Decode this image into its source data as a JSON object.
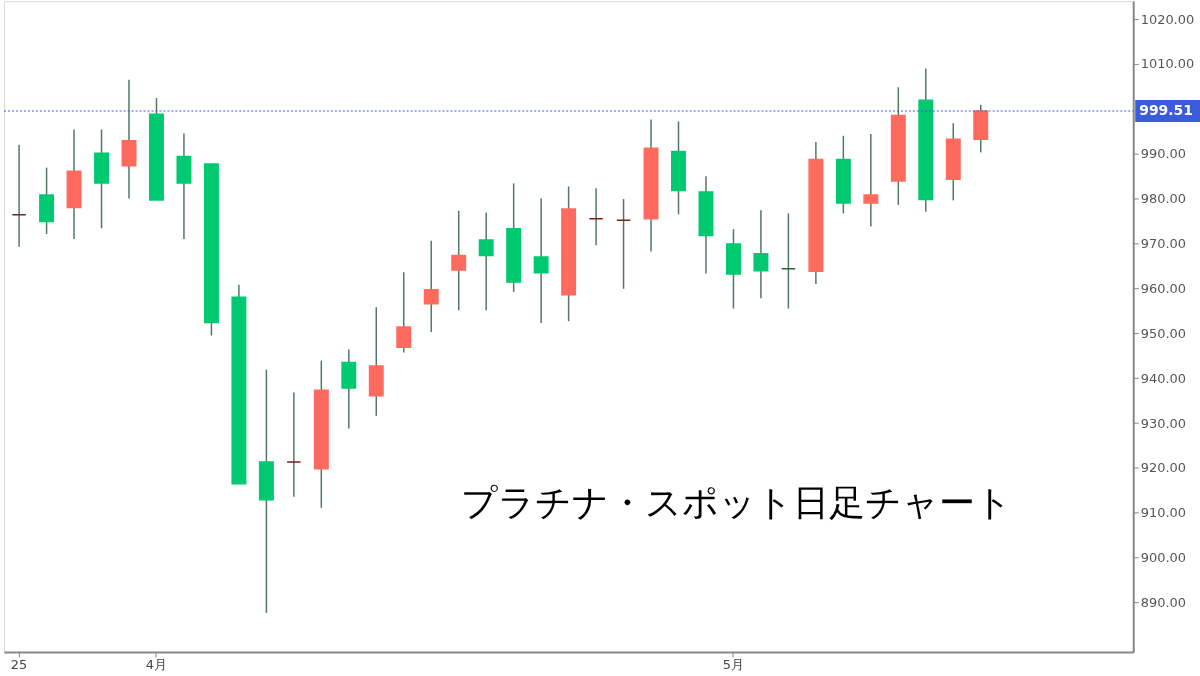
{
  "chart_data": {
    "type": "candlestick",
    "categories": [
      "25",
      null,
      null,
      null,
      null,
      "4月",
      null,
      null,
      null,
      null,
      null,
      null,
      null,
      null,
      null,
      null,
      null,
      null,
      null,
      null,
      null,
      null,
      null,
      null,
      null,
      null,
      "5月",
      null,
      null,
      null,
      null,
      null,
      null,
      null,
      null,
      null,
      null,
      null,
      null,
      null,
      null
    ],
    "ohlc": [
      [
        976.4,
        992.0,
        969.3,
        976.4
      ],
      [
        980.8,
        986.9,
        972.1,
        974.9
      ],
      [
        978.0,
        995.4,
        971.0,
        986.1
      ],
      [
        990.1,
        995.4,
        973.4,
        983.5
      ],
      [
        987.3,
        1006.5,
        980.0,
        992.9
      ],
      [
        998.8,
        1002.4,
        979.7,
        979.7
      ],
      [
        989.4,
        994.5,
        971.0,
        983.5
      ],
      [
        987.7,
        987.7,
        949.5,
        952.4
      ],
      [
        958.0,
        960.8,
        916.5,
        916.5
      ],
      [
        921.3,
        941.9,
        887.7,
        912.9
      ],
      [
        921.3,
        936.8,
        913.6,
        921.3
      ],
      [
        919.8,
        943.9,
        911.1,
        937.3
      ],
      [
        943.5,
        946.4,
        928.8,
        937.8
      ],
      [
        936.1,
        955.8,
        931.6,
        942.7
      ],
      [
        946.9,
        963.6,
        945.7,
        951.4
      ],
      [
        956.6,
        970.6,
        950.3,
        959.7
      ],
      [
        964.1,
        977.3,
        955.1,
        967.3
      ],
      [
        970.8,
        976.9,
        955.1,
        967.3
      ],
      [
        973.3,
        983.4,
        959.2,
        961.4
      ],
      [
        967.0,
        980.0,
        952.3,
        963.5
      ],
      [
        958.6,
        982.7,
        952.7,
        977.7
      ],
      [
        975.5,
        982.3,
        969.6,
        975.5
      ],
      [
        975.2,
        979.9,
        959.9,
        975.2
      ],
      [
        975.5,
        997.6,
        968.2,
        991.2
      ],
      [
        990.5,
        997.2,
        976.5,
        981.8
      ],
      [
        981.5,
        985.0,
        963.3,
        971.8
      ],
      [
        969.9,
        973.2,
        955.5,
        963.2
      ],
      [
        967.7,
        977.4,
        957.8,
        963.9
      ],
      [
        964.4,
        976.7,
        955.5,
        964.4
      ],
      [
        963.8,
        992.6,
        961.0,
        988.7
      ],
      [
        988.7,
        994.0,
        976.7,
        979.0
      ],
      [
        979.0,
        994.4,
        973.8,
        980.8
      ],
      [
        983.9,
        1004.8,
        978.6,
        998.5
      ],
      [
        1001.9,
        1009.0,
        977.1,
        979.8
      ],
      [
        984.3,
        996.8,
        979.6,
        993.2
      ],
      [
        993.2,
        1000.9,
        990.3,
        999.51
      ],
      null,
      null,
      null,
      null,
      null
    ],
    "colors": [
      "#7a1f1f",
      "#00c972",
      "#ff6a5f",
      "#00c972",
      "#ff6a5f",
      "#00c972",
      "#00c972",
      "#00c972",
      "#00c972",
      "#00c972",
      "#7a1f1f",
      "#ff6a5f",
      "#00c972",
      "#ff6a5f",
      "#ff6a5f",
      "#ff6a5f",
      "#ff6a5f",
      "#00c972",
      "#00c972",
      "#00c972",
      "#ff6a5f",
      "#7a1f1f",
      "#7a1f1f",
      "#ff6a5f",
      "#00c972",
      "#00c972",
      "#00c972",
      "#00c972",
      "#2f5a3c",
      "#ff6a5f",
      "#00c972",
      "#ff6a5f",
      "#ff6a5f",
      "#00c972",
      "#ff6a5f",
      "#ff6a5f",
      null,
      null,
      null,
      null,
      null
    ],
    "ylim": [
      879,
      1024
    ],
    "yticks": [
      {
        "value": 890,
        "label": "890.00"
      },
      {
        "value": 900,
        "label": "900.00"
      },
      {
        "value": 910,
        "label": "910.00"
      },
      {
        "value": 920,
        "label": "920.00"
      },
      {
        "value": 930,
        "label": "930.00"
      },
      {
        "value": 940,
        "label": "940.00"
      },
      {
        "value": 950,
        "label": "950.00"
      },
      {
        "value": 960,
        "label": "960.00"
      },
      {
        "value": 970,
        "label": "970.00"
      },
      {
        "value": 980,
        "label": "980.00"
      },
      {
        "value": 990,
        "label": "990.00"
      },
      {
        "value": 1010,
        "label": "1010.00"
      },
      {
        "value": 1020,
        "label": "1020.00"
      }
    ],
    "ref_lines": [
      {
        "axis": "y",
        "value": 999.51,
        "label": "999.51",
        "color": "#3b5bdb",
        "line_style": "dotted"
      }
    ],
    "annotations": [
      "プラチナ・スポット日足チャート"
    ],
    "grid": false
  }
}
